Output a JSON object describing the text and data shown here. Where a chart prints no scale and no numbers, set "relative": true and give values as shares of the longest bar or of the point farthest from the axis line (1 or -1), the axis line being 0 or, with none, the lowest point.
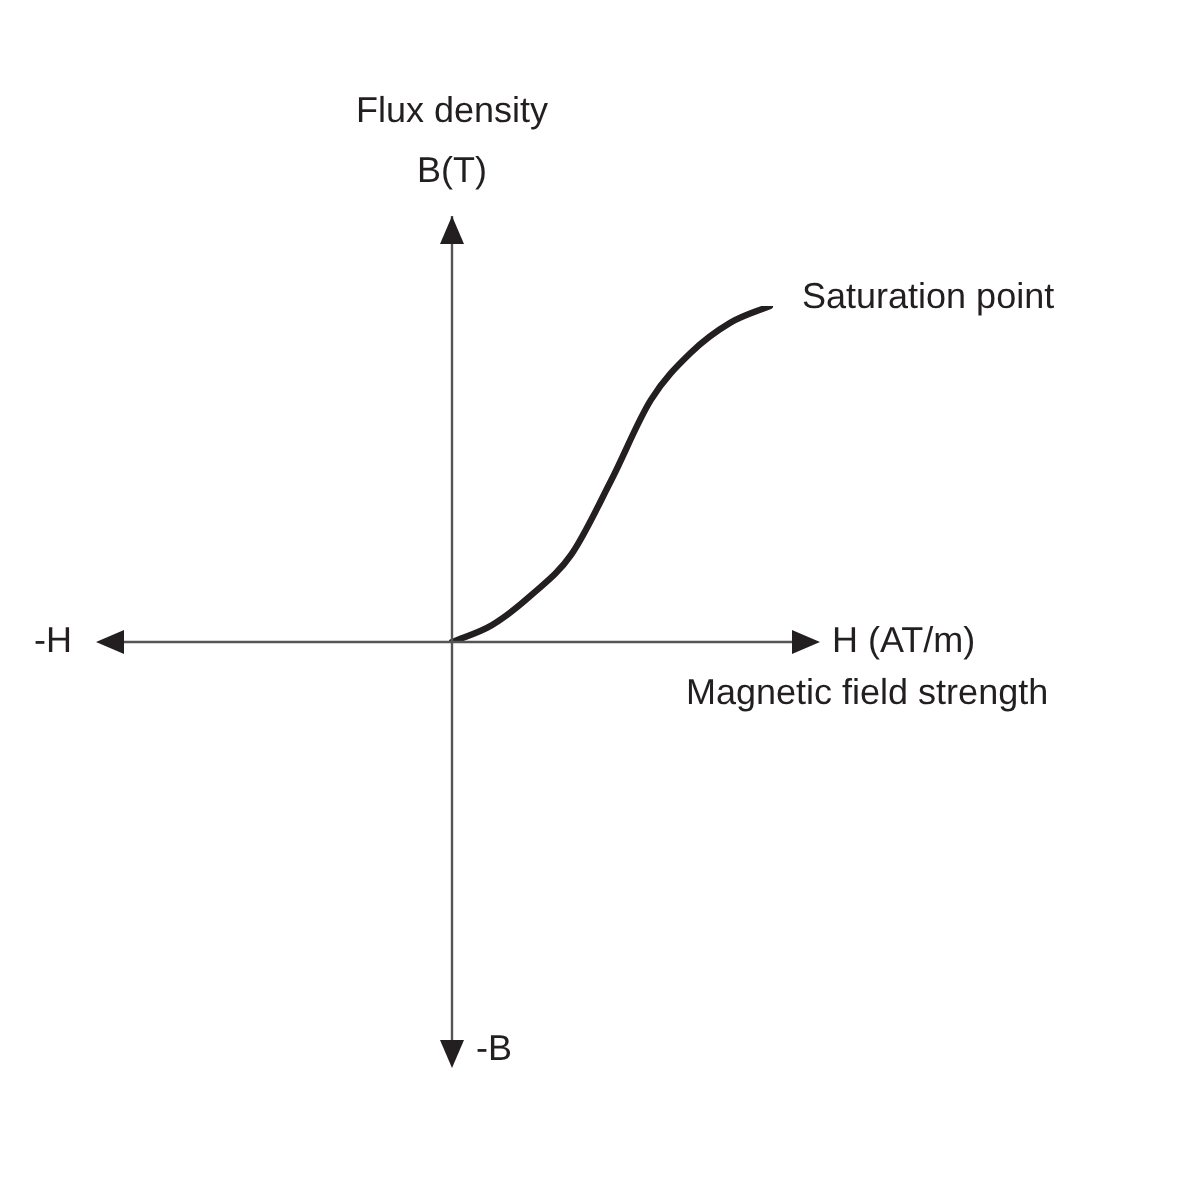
{
  "chart_data": {
    "type": "line",
    "relative": true,
    "xlabel": "H (AT/m)\nMagnetic field strength",
    "ylabel": "Flux density\nB(T)",
    "color": "#231f20",
    "marker": "none",
    "categories": [
      null,
      null,
      null,
      null,
      null,
      null,
      null,
      null,
      null
    ],
    "values": [
      0,
      0.05,
      0.14,
      0.26,
      0.48,
      0.72,
      0.86,
      0.95,
      1
    ],
    "annotations": [
      "-H",
      "-B",
      "Saturation point"
    ]
  }
}
